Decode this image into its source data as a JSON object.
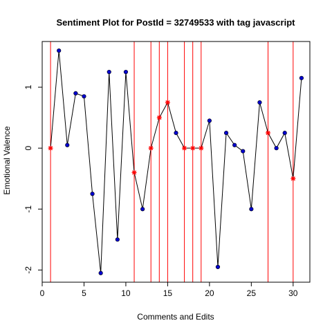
{
  "chart_data": {
    "type": "line",
    "title": "Sentiment Plot for PostId =  32749533  with tag  javascript",
    "xlabel": "Comments and Edits",
    "ylabel": "Emotional Valence",
    "xlim": [
      0,
      32
    ],
    "ylim": [
      -2.2,
      1.75
    ],
    "x_ticks": [
      0,
      5,
      10,
      15,
      20,
      25,
      30
    ],
    "y_ticks": [
      -2,
      -1,
      0,
      1
    ],
    "grid": false,
    "series": [
      {
        "x": [
          1,
          2,
          3,
          4,
          5,
          6,
          7,
          8,
          9,
          10,
          11,
          12,
          13,
          14,
          15,
          16,
          17,
          18,
          19,
          20,
          21,
          22,
          23,
          24,
          25,
          26,
          27,
          28,
          29,
          30,
          31
        ],
        "y": [
          0,
          1.6,
          0.05,
          0.9,
          0.85,
          -0.75,
          -2.05,
          1.25,
          -1.5,
          1.25,
          -0.4,
          -1,
          0,
          0.5,
          0.75,
          0.25,
          0,
          0,
          0,
          0.45,
          -1.95,
          0.25,
          0.05,
          -0.05,
          -1,
          0.75,
          0.25,
          0,
          0.25,
          -0.5,
          1.15
        ]
      }
    ],
    "highlighted_x": [
      1,
      11,
      13,
      14,
      15,
      17,
      18,
      19,
      27,
      30
    ],
    "vertical_lines_x": [
      1,
      11,
      13,
      14,
      15,
      17,
      18,
      19,
      27,
      30
    ],
    "colors": {
      "line": "#000000",
      "point": "#0000cd",
      "highlight": "#ff0000",
      "vline": "#ff0000"
    }
  }
}
